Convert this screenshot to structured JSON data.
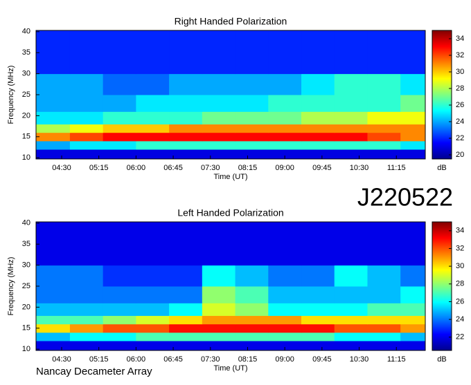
{
  "chart_data": [
    {
      "type": "heatmap",
      "title": "Right Handed Polarization",
      "xlabel": "Time (UT)",
      "ylabel": "Frequency (MHz)",
      "colormap": "jet",
      "colorbar_label": "dB",
      "clim": [
        19.5,
        35
      ],
      "cticks": [
        20,
        22,
        24,
        26,
        28,
        30,
        32,
        34
      ],
      "xlim": [
        239,
        710
      ],
      "ylim": [
        9.7,
        40.3
      ],
      "xticks": [
        {
          "value": 270,
          "label": "04:30"
        },
        {
          "value": 315,
          "label": "05:15"
        },
        {
          "value": 360,
          "label": "06:00"
        },
        {
          "value": 405,
          "label": "06:45"
        },
        {
          "value": 450,
          "label": "07:30"
        },
        {
          "value": 495,
          "label": "08:15"
        },
        {
          "value": 540,
          "label": "09:00"
        },
        {
          "value": 585,
          "label": "09:45"
        },
        {
          "value": 630,
          "label": "10:30"
        },
        {
          "value": 675,
          "label": "11:15"
        }
      ],
      "yticks": [
        10,
        15,
        20,
        25,
        30,
        35,
        40
      ],
      "xbins": [
        239,
        280,
        320,
        360,
        400,
        440,
        480,
        520,
        560,
        600,
        640,
        680,
        710
      ],
      "ybins": [
        9.7,
        12,
        14,
        16,
        18,
        21,
        25,
        30,
        40.3
      ],
      "z": [
        [
          21,
          21,
          21,
          21,
          21,
          21,
          21,
          21,
          21,
          21,
          21,
          21
        ],
        [
          24,
          25,
          25,
          26,
          26,
          26,
          26,
          26,
          26,
          26,
          26,
          25
        ],
        [
          31,
          32,
          33,
          33,
          33,
          33,
          33,
          33,
          33,
          33,
          32,
          31
        ],
        [
          28,
          29,
          30,
          30,
          31,
          31,
          31,
          31,
          31,
          31,
          31,
          31
        ],
        [
          25,
          25,
          26,
          26,
          26,
          27,
          27,
          27,
          28,
          28,
          29,
          29
        ],
        [
          24,
          24,
          24,
          25,
          25,
          25,
          25,
          26,
          26,
          26,
          26,
          27
        ],
        [
          24,
          24,
          23,
          23,
          24,
          24,
          24,
          24,
          25,
          26,
          26,
          25
        ],
        [
          22,
          22,
          22,
          22,
          22,
          22,
          22,
          22,
          22,
          22,
          22,
          22
        ]
      ]
    },
    {
      "type": "heatmap",
      "title": "Left Handed Polarization",
      "xlabel": "Time (UT)",
      "ylabel": "Frequency (MHz)",
      "colormap": "jet",
      "colorbar_label": "dB",
      "clim": [
        20.5,
        35
      ],
      "cticks": [
        22,
        24,
        26,
        28,
        30,
        32,
        34
      ],
      "xlim": [
        239,
        710
      ],
      "ylim": [
        9.7,
        40.3
      ],
      "xticks": [
        {
          "value": 270,
          "label": "04:30"
        },
        {
          "value": 315,
          "label": "05:15"
        },
        {
          "value": 360,
          "label": "06:00"
        },
        {
          "value": 405,
          "label": "06:45"
        },
        {
          "value": 450,
          "label": "07:30"
        },
        {
          "value": 495,
          "label": "08:15"
        },
        {
          "value": 540,
          "label": "09:00"
        },
        {
          "value": 585,
          "label": "09:45"
        },
        {
          "value": 630,
          "label": "10:30"
        },
        {
          "value": 675,
          "label": "11:15"
        }
      ],
      "yticks": [
        10,
        15,
        20,
        25,
        30,
        35,
        40
      ],
      "xbins": [
        239,
        280,
        320,
        360,
        400,
        440,
        480,
        520,
        560,
        600,
        640,
        680,
        710
      ],
      "ybins": [
        9.7,
        12,
        14,
        16,
        18,
        21,
        25,
        30,
        40.3
      ],
      "z": [
        [
          22,
          22,
          22,
          22,
          22,
          22,
          22,
          22,
          22,
          22,
          22,
          22
        ],
        [
          25,
          26,
          26,
          27,
          27,
          27,
          27,
          27,
          27,
          26,
          26,
          25
        ],
        [
          30,
          31,
          32,
          32,
          33,
          33,
          33,
          33,
          33,
          32,
          32,
          31
        ],
        [
          27,
          27,
          28,
          29,
          30,
          31,
          31,
          31,
          30,
          30,
          30,
          30
        ],
        [
          25,
          25,
          25,
          25,
          26,
          29,
          28,
          26,
          26,
          26,
          27,
          27
        ],
        [
          24,
          24,
          24,
          24,
          24,
          28,
          27,
          25,
          25,
          25,
          25,
          26
        ],
        [
          24,
          24,
          23,
          23,
          23,
          26,
          25,
          24,
          24,
          26,
          25,
          24
        ],
        [
          22,
          22,
          22,
          22,
          22,
          22,
          22,
          22,
          22,
          22,
          22,
          22
        ]
      ]
    }
  ],
  "date_label": "J220522",
  "footer": "Nancay Decameter Array"
}
